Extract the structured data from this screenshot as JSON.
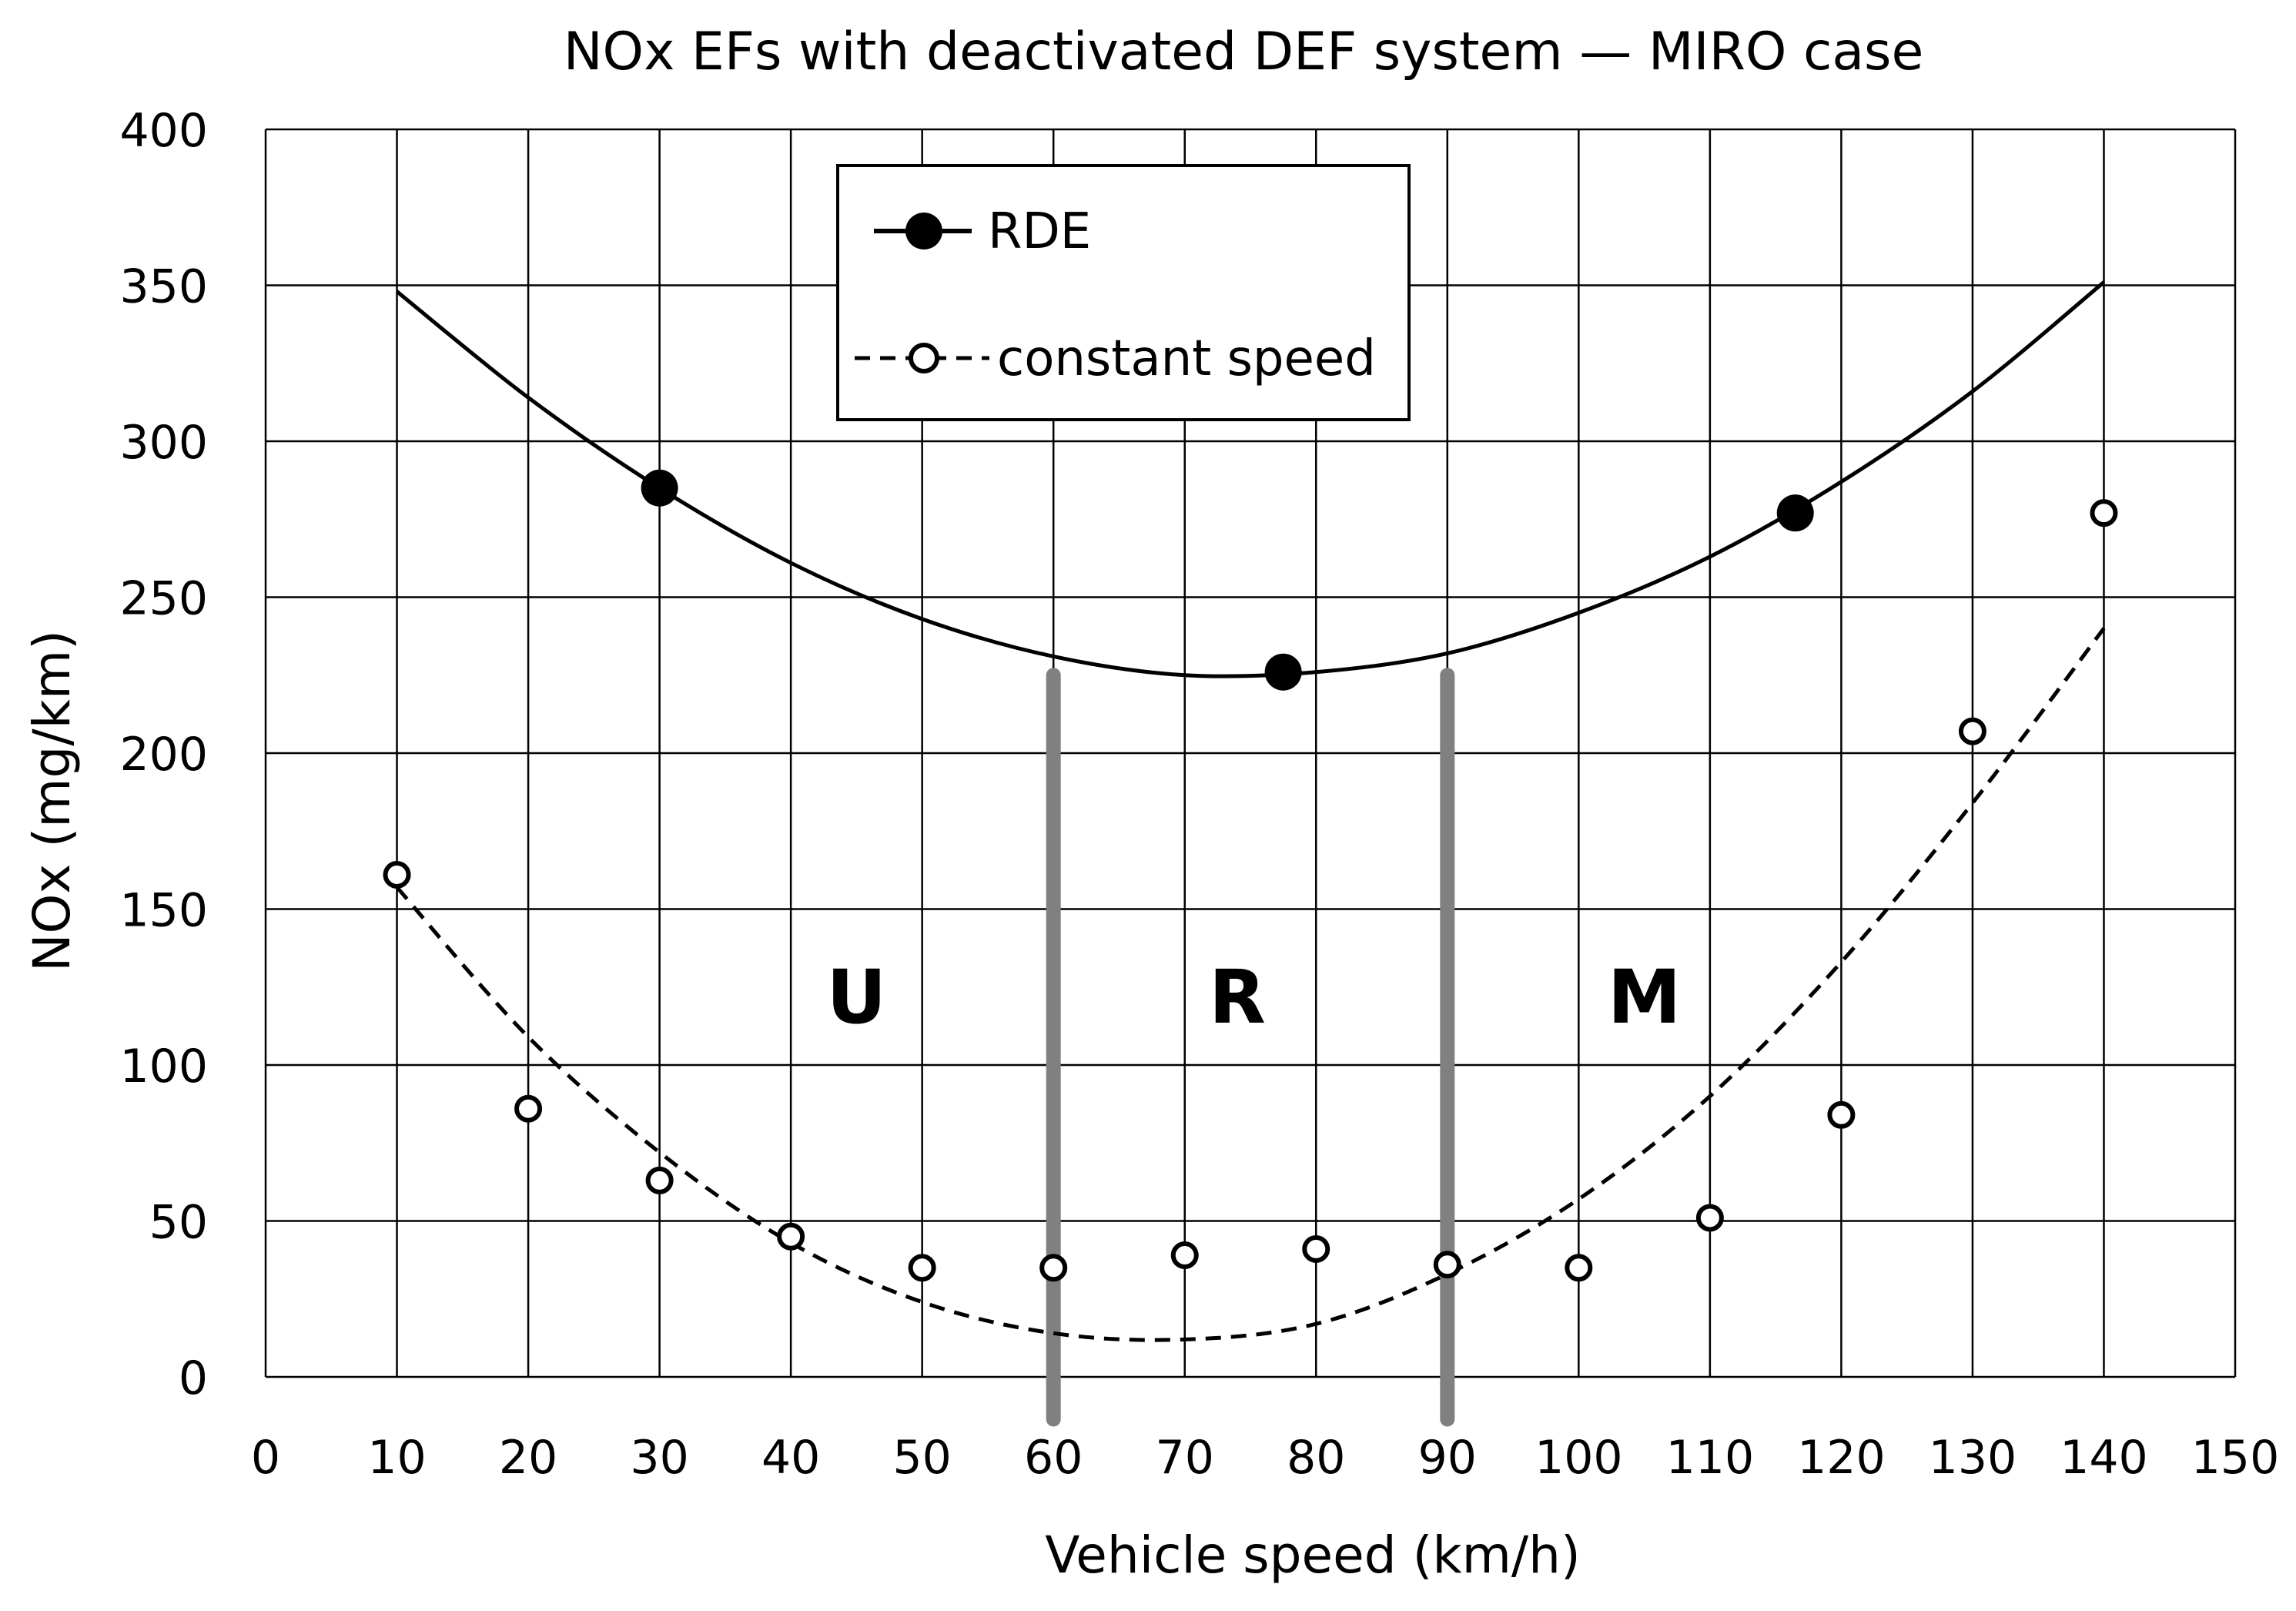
{
  "chart_data": {
    "type": "line",
    "title": "NOx EFs with deactivated DEF system — MIRO case",
    "xlabel": "Vehicle speed (km/h)",
    "ylabel": "NOx (mg/km)",
    "xlim": [
      0,
      150
    ],
    "ylim": [
      0,
      400
    ],
    "x_ticks": [
      0,
      10,
      20,
      30,
      40,
      50,
      60,
      70,
      80,
      90,
      100,
      110,
      120,
      130,
      140,
      150
    ],
    "y_ticks": [
      0,
      50,
      100,
      150,
      200,
      250,
      300,
      350,
      400
    ],
    "grid": true,
    "legend_position": "top-center",
    "series": [
      {
        "name": "RDE",
        "style": "solid-line-filled-markers",
        "points": [
          {
            "x": 30,
            "y": 285
          },
          {
            "x": 77.5,
            "y": 226
          },
          {
            "x": 116.5,
            "y": 277
          }
        ],
        "trend_curve": {
          "x": [
            10,
            20,
            30,
            40,
            50,
            60,
            70,
            80,
            90,
            100,
            110,
            120,
            130,
            140
          ],
          "y": [
            348,
            314,
            285,
            261,
            243,
            231,
            225,
            226,
            232,
            245,
            263,
            287,
            316,
            351
          ]
        }
      },
      {
        "name": "constant speed",
        "style": "dashed-line-open-markers",
        "points": [
          {
            "x": 10,
            "y": 161
          },
          {
            "x": 20,
            "y": 86
          },
          {
            "x": 30,
            "y": 63
          },
          {
            "x": 40,
            "y": 45
          },
          {
            "x": 50,
            "y": 35
          },
          {
            "x": 60,
            "y": 35
          },
          {
            "x": 70,
            "y": 39
          },
          {
            "x": 80,
            "y": 41
          },
          {
            "x": 90,
            "y": 36
          },
          {
            "x": 100,
            "y": 35
          },
          {
            "x": 110,
            "y": 51
          },
          {
            "x": 120,
            "y": 84
          },
          {
            "x": 130,
            "y": 207
          },
          {
            "x": 140,
            "y": 277
          }
        ],
        "trend_curve": {
          "x": [
            10,
            20,
            30,
            40,
            50,
            60,
            70,
            80,
            90,
            100,
            110,
            120,
            130,
            140
          ],
          "y": [
            157,
            109,
            72,
            43,
            24,
            14,
            12,
            17,
            33,
            57,
            90,
            133,
            184,
            240
          ]
        }
      }
    ],
    "zone_dividers": [
      {
        "x": 60,
        "y_range": [
          0,
          225
        ]
      },
      {
        "x": 90,
        "y_range": [
          0,
          225
        ]
      }
    ],
    "zone_labels": [
      {
        "text": "U",
        "x": 45,
        "y": 122
      },
      {
        "text": "R",
        "x": 74,
        "y": 122
      },
      {
        "text": "M",
        "x": 105,
        "y": 122
      }
    ]
  },
  "colors": {
    "grid": "#000000",
    "series": "#000000",
    "divider": "#808080",
    "background": "#ffffff"
  }
}
